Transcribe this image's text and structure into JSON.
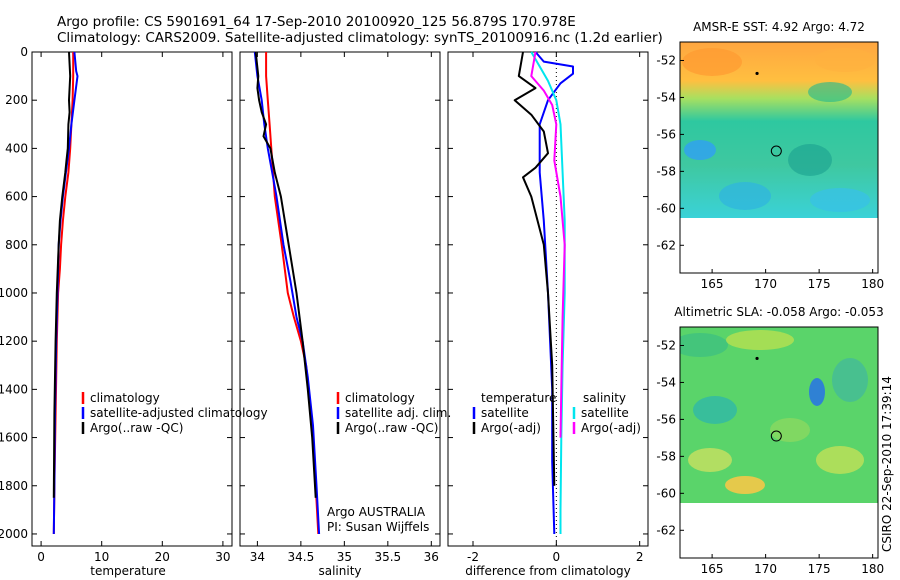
{
  "header": {
    "line1": "Argo profile: CS 5901691_64 17-Sep-2010 20100920_125 56.879S 170.978E",
    "line2": "Climatology: CARS2009. Satellite-adjusted climatology: synTS_20100916.nc (1.2d earlier)"
  },
  "side_label": "CSIRO 22-Sep-2010 17:39:14",
  "colors": {
    "climatology": "#ff0000",
    "satellite": "#0000ff",
    "argo": "#000000",
    "cyan": "#00e5ee",
    "magenta": "#ff00ff"
  },
  "chart_data": [
    {
      "type": "line",
      "id": "temperature",
      "xlabel": "temperature",
      "ylabel": "",
      "xlim": [
        -1.5,
        31.5
      ],
      "ylim": [
        0,
        2050
      ],
      "y_inverted": true,
      "xticks": [
        0,
        10,
        20,
        30
      ],
      "yticks": [
        0,
        200,
        400,
        600,
        800,
        1000,
        1200,
        1400,
        1600,
        1800,
        2000
      ],
      "legend": {
        "position": "lower-center",
        "entries": [
          "climatology",
          "satellite-adjusted climatology",
          "Argo(..raw -QC)"
        ]
      },
      "series": [
        {
          "name": "climatology",
          "color": "#ff0000",
          "x": [
            5.3,
            5.3,
            5.2,
            5.0,
            4.8,
            4.5,
            4.0,
            3.6,
            3.3,
            3.1,
            2.8,
            2.6,
            2.4,
            2.2,
            2.1
          ],
          "y": [
            0,
            100,
            200,
            300,
            400,
            500,
            600,
            700,
            800,
            900,
            1000,
            1200,
            1500,
            1800,
            2000
          ]
        },
        {
          "name": "satellite-adjusted climatology",
          "color": "#0000ff",
          "x": [
            5.5,
            5.8,
            6.0,
            5.5,
            5.0,
            4.6,
            4.1,
            3.6,
            3.2,
            2.9,
            2.7,
            2.5,
            2.3,
            2.2,
            2.1
          ],
          "y": [
            0,
            80,
            100,
            200,
            300,
            400,
            500,
            600,
            700,
            800,
            1000,
            1200,
            1500,
            1800,
            2000
          ]
        },
        {
          "name": "Argo(..raw -QC)",
          "color": "#000000",
          "x": [
            4.6,
            4.8,
            4.6,
            4.7,
            4.5,
            4.4,
            4.2,
            4.0,
            3.5,
            3.1,
            2.9,
            2.6,
            2.4,
            2.2,
            2.1
          ],
          "y": [
            0,
            100,
            200,
            250,
            300,
            400,
            450,
            500,
            600,
            700,
            800,
            1000,
            1200,
            1500,
            1850
          ]
        }
      ]
    },
    {
      "type": "line",
      "id": "salinity",
      "xlabel": "salinity",
      "xlim": [
        33.8,
        36.1
      ],
      "ylim": [
        0,
        2050
      ],
      "y_inverted": true,
      "xticks": [
        34,
        34.5,
        35,
        35.5,
        36
      ],
      "legend": {
        "position": "lower-center",
        "entries": [
          "climatology",
          "satellite adj. clim.",
          "Argo(..raw -QC)"
        ]
      },
      "annotations": [
        "Argo AUSTRALIA",
        "PI: Susan Wijffels"
      ],
      "series": [
        {
          "name": "climatology",
          "color": "#ff0000",
          "x": [
            34.1,
            34.1,
            34.12,
            34.14,
            34.16,
            34.2,
            34.28,
            34.35,
            34.42,
            34.5,
            34.56,
            34.62,
            34.67,
            34.7
          ],
          "y": [
            0,
            100,
            200,
            300,
            400,
            600,
            800,
            1000,
            1100,
            1200,
            1300,
            1500,
            1800,
            2000
          ]
        },
        {
          "name": "satellite adj. clim.",
          "color": "#0000ff",
          "x": [
            33.97,
            34.0,
            34.05,
            34.08,
            34.12,
            34.17,
            34.22,
            34.3,
            34.38,
            34.45,
            34.52,
            34.58,
            34.64,
            34.68,
            34.71
          ],
          "y": [
            0,
            100,
            200,
            300,
            400,
            500,
            600,
            800,
            950,
            1100,
            1200,
            1350,
            1550,
            1800,
            2000
          ]
        },
        {
          "name": "Argo(..raw -QC)",
          "color": "#000000",
          "x": [
            33.98,
            34.01,
            34.0,
            34.02,
            34.05,
            34.1,
            34.07,
            34.15,
            34.2,
            34.27,
            34.36,
            34.45,
            34.52,
            34.58,
            34.63,
            34.67
          ],
          "y": [
            0,
            100,
            150,
            200,
            250,
            300,
            350,
            400,
            500,
            600,
            800,
            1000,
            1200,
            1400,
            1600,
            1850
          ]
        }
      ]
    },
    {
      "type": "line",
      "id": "difference",
      "xlabel": "difference from climatology",
      "xlim": [
        -2.6,
        2.2
      ],
      "ylim": [
        0,
        2050
      ],
      "y_inverted": true,
      "xticks": [
        -2,
        0,
        2
      ],
      "legend": {
        "position": "lower-center",
        "entries": [
          "temperature",
          "satellite",
          "Argo(-adj)",
          "salinity",
          "satellite",
          "Argo(-adj)"
        ]
      },
      "series": [
        {
          "name": "temperature satellite",
          "color": "#0000ff",
          "x": [
            -0.5,
            -0.3,
            0.4,
            0.4,
            0.1,
            -0.2,
            -0.4,
            -0.4,
            -0.3,
            -0.2,
            -0.1,
            -0.1,
            -0.05
          ],
          "y": [
            0,
            40,
            60,
            90,
            130,
            200,
            300,
            500,
            700,
            1000,
            1400,
            1700,
            2000
          ]
        },
        {
          "name": "temperature Argo(-adj)",
          "color": "#000000",
          "x": [
            -0.8,
            -0.9,
            -0.5,
            -1.0,
            -0.6,
            -0.3,
            -0.2,
            -0.5,
            -0.8,
            -0.6,
            -0.3,
            -0.2,
            -0.1,
            -0.05
          ],
          "y": [
            0,
            100,
            150,
            200,
            260,
            330,
            420,
            480,
            520,
            600,
            800,
            1000,
            1300,
            1800
          ]
        },
        {
          "name": "salinity satellite",
          "color": "#00e5ee",
          "x": [
            -0.6,
            -0.4,
            -0.2,
            0.0,
            0.1,
            0.15,
            0.2,
            0.2,
            0.15,
            0.12,
            0.1,
            0.1
          ],
          "y": [
            0,
            60,
            120,
            200,
            300,
            500,
            700,
            1000,
            1300,
            1600,
            1900,
            2000
          ]
        },
        {
          "name": "salinity Argo(-adj)",
          "color": "#ff00ff",
          "x": [
            -0.5,
            -0.6,
            -0.3,
            -0.1,
            0.0,
            -0.05,
            0.1,
            0.2,
            0.15,
            0.12,
            0.1
          ],
          "y": [
            0,
            100,
            160,
            220,
            300,
            450,
            600,
            800,
            1100,
            1400,
            1600
          ]
        }
      ]
    },
    {
      "type": "heatmap",
      "id": "sst-map",
      "title": "AMSR-E SST: 4.92 Argo: 4.72",
      "xlim": [
        162,
        180.5
      ],
      "ylim": [
        -63.5,
        -51
      ],
      "xticks": [
        165,
        170,
        175,
        180
      ],
      "yticks": [
        -52,
        -54,
        -56,
        -58,
        -60,
        -62
      ],
      "data_south_limit": -60,
      "profile_marker": [
        171,
        -56.9
      ],
      "previous_marker": [
        169.2,
        -52.7
      ]
    },
    {
      "type": "heatmap",
      "id": "sla-map",
      "title": "Altimetric SLA: -0.058 Argo: -0.053",
      "xlim": [
        162,
        180.5
      ],
      "ylim": [
        -63.5,
        -51
      ],
      "xticks": [
        165,
        170,
        175,
        180
      ],
      "yticks": [
        -52,
        -54,
        -56,
        -58,
        -60,
        -62
      ],
      "data_south_limit": -60,
      "profile_marker": [
        171,
        -56.9
      ],
      "previous_marker": [
        169.2,
        -52.7
      ]
    }
  ]
}
